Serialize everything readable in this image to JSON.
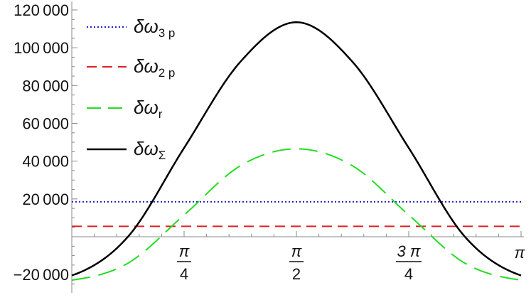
{
  "chart_data": {
    "type": "line",
    "title": "",
    "xlabel": "",
    "ylabel": "",
    "xlim": [
      0,
      3.14159265
    ],
    "ylim": [
      -30000,
      120000
    ],
    "y_ticks": [
      {
        "value": -20000,
        "label": "-20000"
      },
      {
        "value": 20000,
        "label": "20000"
      },
      {
        "value": 40000,
        "label": "40000"
      },
      {
        "value": 60000,
        "label": "60000"
      },
      {
        "value": 80000,
        "label": "80000"
      },
      {
        "value": 100000,
        "label": "100000"
      },
      {
        "value": 120000,
        "label": "120000"
      }
    ],
    "x_ticks": [
      {
        "value": 0.7853982,
        "numerator": "π",
        "denominator": "4"
      },
      {
        "value": 1.5707963,
        "numerator": "π",
        "denominator": "2"
      },
      {
        "value": 2.3561945,
        "numerator": "3 π",
        "denominator": "4"
      },
      {
        "value": 3.1415927,
        "label": "π"
      }
    ],
    "legend": {
      "placement": "top-left",
      "items": [
        {
          "base": "δω",
          "sub": "3 p",
          "color": "#2222cc",
          "style": "dotted"
        },
        {
          "base": "δω",
          "sub": "2 p",
          "color": "#dd2222",
          "style": "dashed"
        },
        {
          "base": "δω",
          "sub": "r",
          "color": "#22dd22",
          "style": "long-dashed"
        },
        {
          "base": "δω",
          "sub": "Σ",
          "color": "#000000",
          "style": "solid"
        }
      ]
    },
    "series": [
      {
        "name": "δω3 p",
        "color": "#2222cc",
        "style": "dotted",
        "x": [
          0,
          0.3927,
          0.7854,
          1.1781,
          1.5708,
          1.9635,
          2.3562,
          2.7489,
          3.1416
        ],
        "values": [
          18500,
          18500,
          18500,
          18500,
          18500,
          18500,
          18500,
          18500,
          18500
        ]
      },
      {
        "name": "δω2 p",
        "color": "#dd2222",
        "style": "dashed",
        "x": [
          0,
          0.3927,
          0.7854,
          1.1781,
          1.5708,
          1.9635,
          2.3562,
          2.7489,
          3.1416
        ],
        "values": [
          5500,
          5500,
          5500,
          5500,
          5500,
          5500,
          5500,
          5500,
          5500
        ]
      },
      {
        "name": "δωr",
        "color": "#22dd22",
        "style": "long-dashed",
        "x": [
          0,
          0.3927,
          0.7854,
          1.1781,
          1.5708,
          1.9635,
          2.3562,
          2.7489,
          3.1416
        ],
        "values": [
          -23000,
          -14000,
          11500,
          37500,
          46500,
          37500,
          11500,
          -14000,
          -23000
        ]
      },
      {
        "name": "δωΣ",
        "color": "#000000",
        "style": "solid",
        "x": [
          0,
          0.3927,
          0.7854,
          1.1781,
          1.5708,
          1.9635,
          2.3562,
          2.7489,
          3.1416
        ],
        "values": [
          -20500,
          0,
          47000,
          92500,
          113500,
          92500,
          47000,
          0,
          -20500
        ]
      }
    ],
    "grid": false
  }
}
